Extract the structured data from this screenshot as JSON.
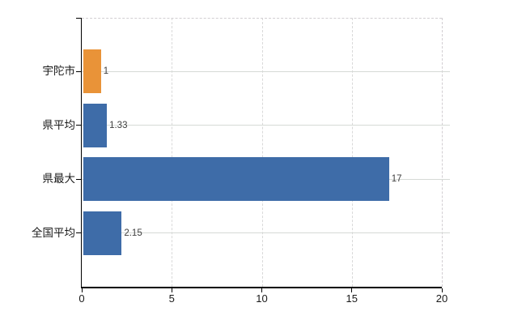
{
  "chart_data": {
    "type": "bar",
    "orientation": "horizontal",
    "title": "",
    "categories": [
      "宇陀市",
      "県平均",
      "県最大",
      "全国平均"
    ],
    "values": [
      1,
      1.33,
      17,
      2.15
    ],
    "value_labels": [
      "1",
      "1.33",
      "17",
      "2.15"
    ],
    "series": [
      {
        "name": "value",
        "values": [
          1,
          1.33,
          17,
          2.15
        ]
      }
    ],
    "x_ticks": [
      0,
      5,
      10,
      15,
      20
    ],
    "x_tick_labels": [
      "0",
      "5",
      "10",
      "15",
      "20"
    ],
    "xlim": [
      0,
      20
    ],
    "xlabel": "",
    "ylabel": "",
    "grid": true,
    "legend": false,
    "colors": {
      "highlight_bar": "#e99338",
      "default_bar": "#3e6ca8",
      "bar_colors": [
        "#e99338",
        "#3e6ca8",
        "#3e6ca8",
        "#3e6ca8"
      ],
      "axis": "#000000",
      "gridline_horizontal": "#d6dad6",
      "gridline_vertical": "#d9d9d9",
      "dashed_border": "#d2ced2",
      "category_label": "#1a1a1a",
      "value_label": "#3f3f3f"
    }
  }
}
